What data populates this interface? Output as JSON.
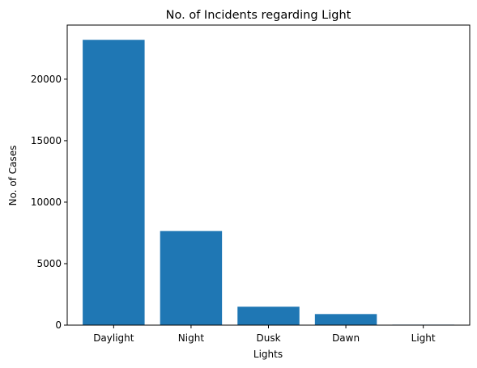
{
  "chart_data": {
    "type": "bar",
    "title": "No. of Incidents regarding Light",
    "xlabel": "Lights",
    "ylabel": "No. of Cases",
    "categories": [
      "Daylight",
      "Night",
      "Dusk",
      "Dawn",
      "Light"
    ],
    "values": [
      23200,
      7650,
      1500,
      900,
      40
    ],
    "ylim": [
      0,
      24400
    ],
    "yticks": [
      0,
      5000,
      10000,
      15000,
      20000
    ],
    "bar_color": "#1f77b4",
    "grid": false,
    "legend": "none"
  }
}
